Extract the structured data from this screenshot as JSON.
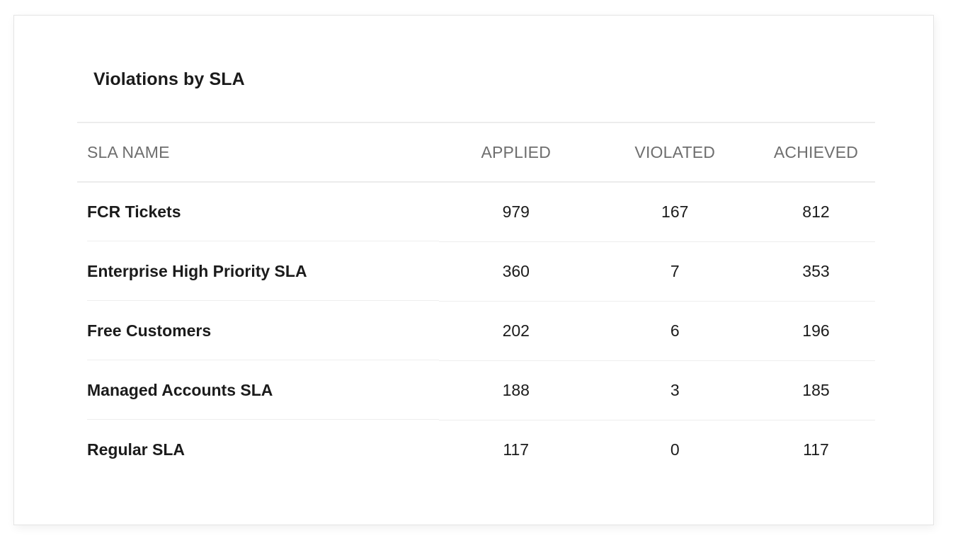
{
  "title": "Violations by SLA",
  "table": {
    "columns": [
      "SLA NAME",
      "APPLIED",
      "VIOLATED",
      "ACHIEVED"
    ],
    "rows": [
      {
        "name": "FCR Tickets",
        "applied": "979",
        "violated": "167",
        "achieved": "812"
      },
      {
        "name": "Enterprise High Priority SLA",
        "applied": "360",
        "violated": "7",
        "achieved": "353"
      },
      {
        "name": "Free Customers",
        "applied": "202",
        "violated": "6",
        "achieved": "196"
      },
      {
        "name": "Managed Accounts SLA",
        "applied": "188",
        "violated": "3",
        "achieved": "185"
      },
      {
        "name": "Regular SLA",
        "applied": "117",
        "violated": "0",
        "achieved": "117"
      }
    ]
  }
}
